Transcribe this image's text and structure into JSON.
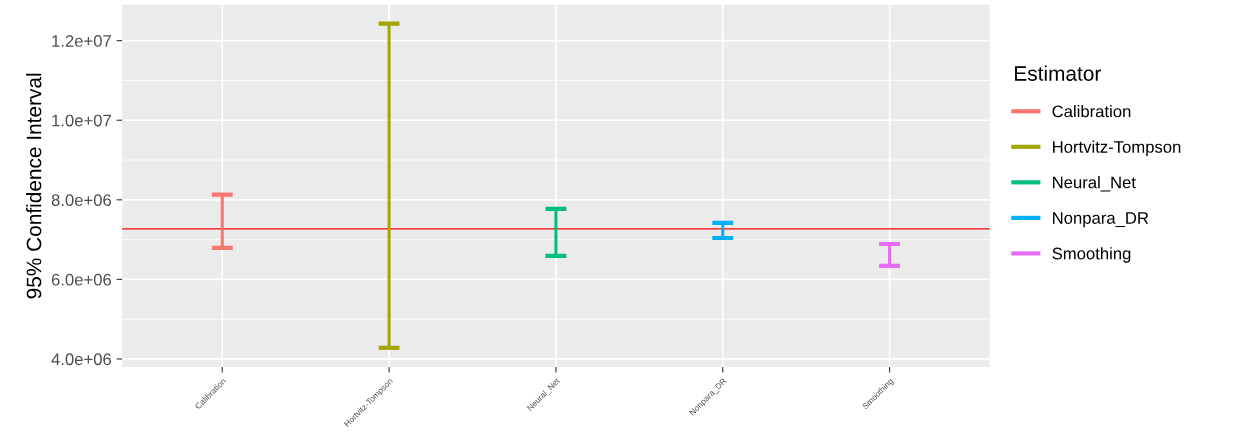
{
  "chart_data": {
    "type": "bar",
    "ylabel": "95% Confidence Interval",
    "legend_title": "Estimator",
    "categories": [
      "Calibration",
      "Hortvitz-Tompson",
      "Neural_Net",
      "Nonpara_DR",
      "Smoothing"
    ],
    "series": [
      {
        "name": "Calibration",
        "color": "#f8766d",
        "base": [
          6790000,
          null,
          null,
          null,
          null
        ],
        "values": [
          1340000,
          null,
          null,
          null,
          null
        ]
      },
      {
        "name": "Hortvitz-Tompson",
        "color": "#a3a500",
        "base": [
          null,
          4280000,
          null,
          null,
          null
        ],
        "values": [
          null,
          8150000,
          null,
          null,
          null
        ]
      },
      {
        "name": "Neural_Net",
        "color": "#00bf7d",
        "base": [
          null,
          null,
          6590000,
          null,
          null
        ],
        "values": [
          null,
          null,
          1180000,
          null,
          null
        ]
      },
      {
        "name": "Nonpara_DR",
        "color": "#00b0f6",
        "base": [
          null,
          null,
          null,
          7040000,
          null
        ],
        "values": [
          null,
          null,
          null,
          380000,
          null
        ]
      },
      {
        "name": "Smoothing",
        "color": "#e76bf3",
        "base": [
          null,
          null,
          null,
          null,
          6340000
        ],
        "values": [
          null,
          null,
          null,
          null,
          550000
        ]
      }
    ],
    "ylim": [
      3800000,
      12900000
    ],
    "yticks": [
      {
        "value": 4000000,
        "label": "4.0e+06"
      },
      {
        "value": 6000000,
        "label": "6.0e+06"
      },
      {
        "value": 8000000,
        "label": "8.0e+06"
      },
      {
        "value": 10000000,
        "label": "1.0e+07"
      },
      {
        "value": 12000000,
        "label": "1.2e+07"
      }
    ],
    "ref_lines": [
      {
        "axis": "y",
        "value": 7270000,
        "color": "#ff0000"
      }
    ],
    "grid": true,
    "legend": "right"
  }
}
